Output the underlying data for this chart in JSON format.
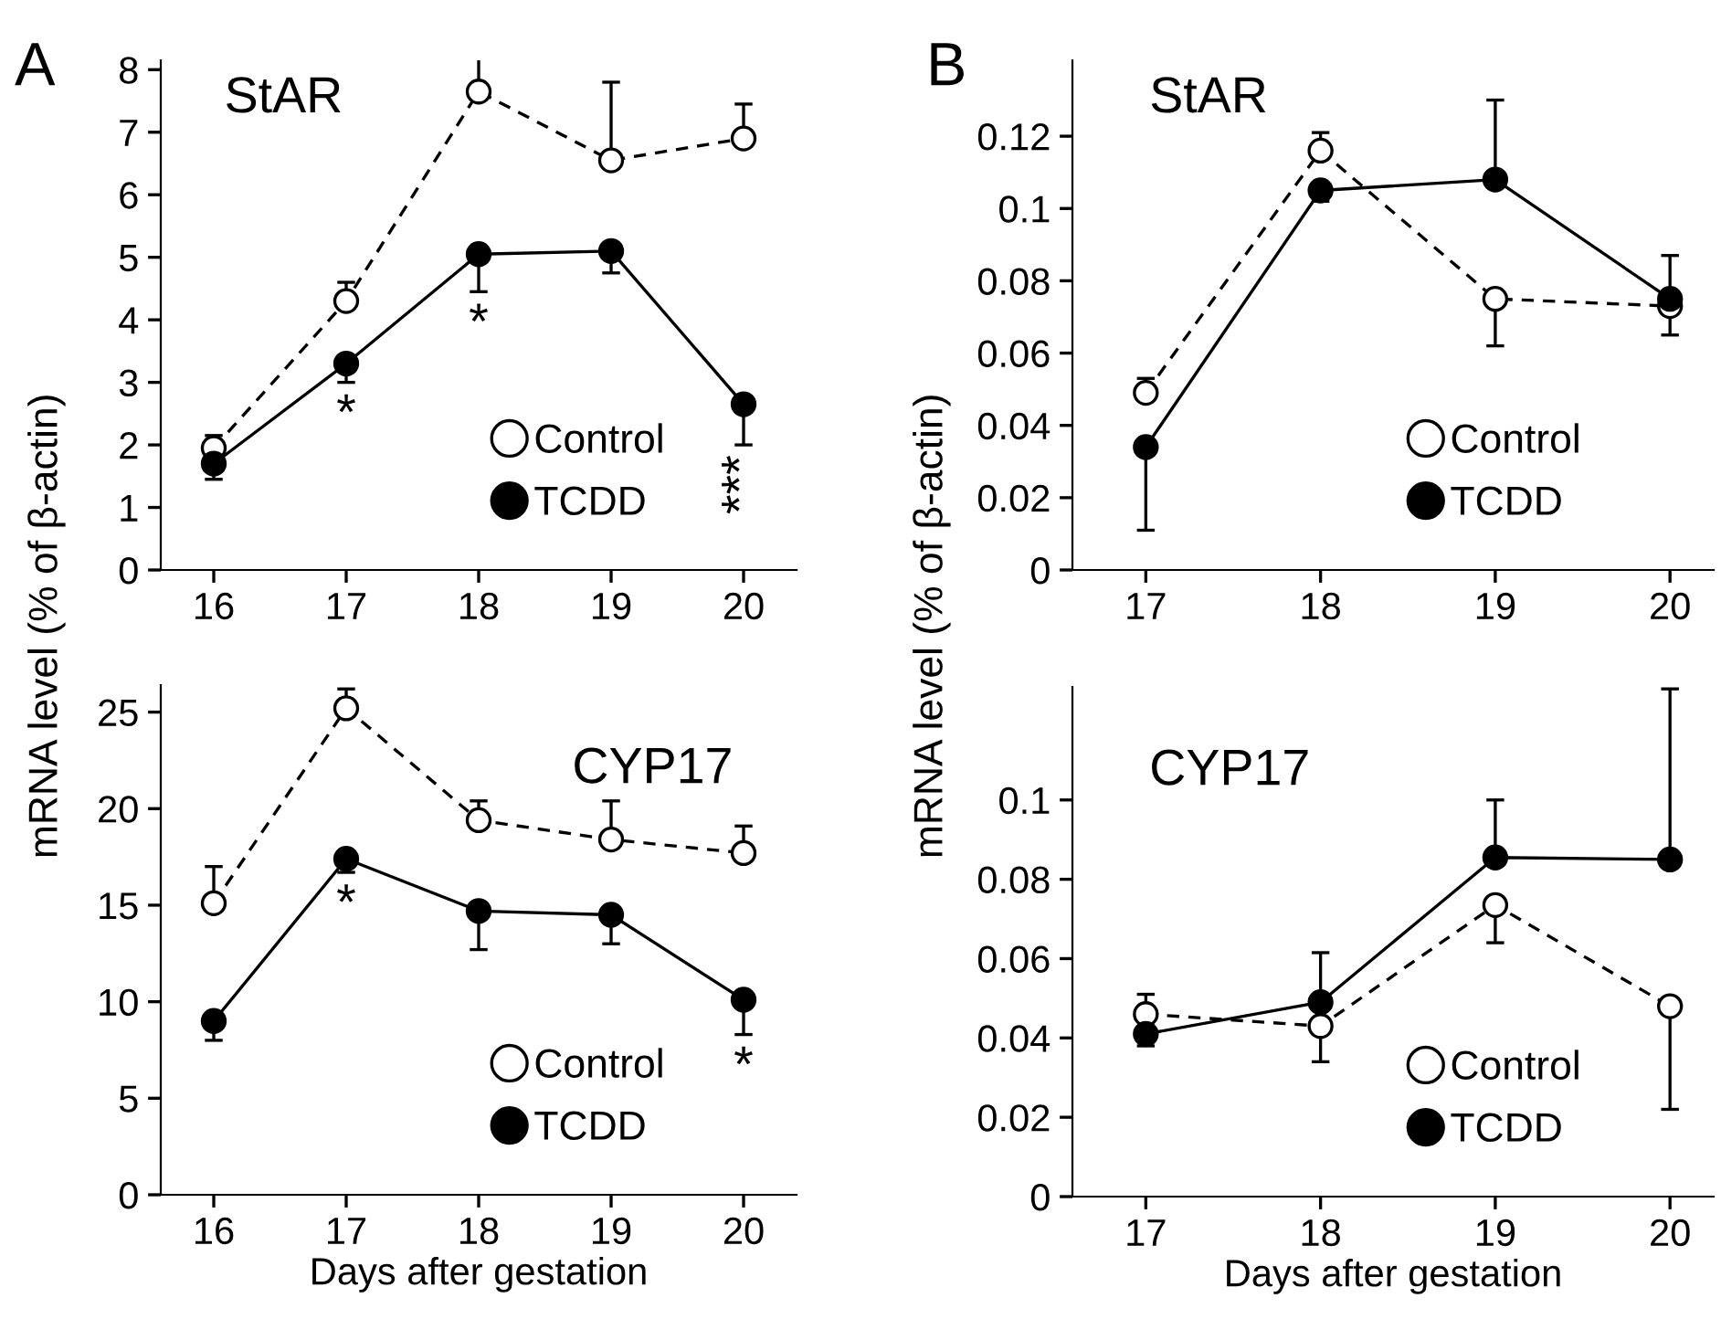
{
  "chart_data": [
    {
      "type": "line",
      "title": "StAR",
      "ylabel": "mRNA level (% of β-actin)",
      "annotations": [
        "A",
        {
          "text": "*",
          "x": 17,
          "y": 3.3
        },
        {
          "text": "*",
          "x": 18,
          "y": 5.05
        },
        {
          "text": "***",
          "x": 20,
          "y": 2.65
        }
      ],
      "x": [
        16,
        17,
        18,
        19,
        20
      ],
      "xlim": [
        15.6,
        20.4
      ],
      "xticks": [
        16,
        17,
        18,
        19,
        20
      ],
      "ylim": [
        0,
        8.15
      ],
      "yticks": [
        0,
        1,
        2,
        3,
        4,
        5,
        6,
        7,
        8
      ],
      "legend": "lower right",
      "grid": false,
      "marker": "circle",
      "series": [
        {
          "name": "Control",
          "color": "#ffffff",
          "line_style": "dashed",
          "values": [
            1.95,
            4.3,
            7.65,
            6.55,
            6.9
          ],
          "errors": [
            [
              1.95,
              2.15
            ],
            [
              4.3,
              4.6
            ],
            [
              7.65,
              8.2
            ],
            [
              6.55,
              7.8
            ],
            [
              6.9,
              7.45
            ]
          ]
        },
        {
          "name": "TCDD",
          "color": "#000000",
          "line_style": "solid",
          "values": [
            1.7,
            3.3,
            5.05,
            5.1,
            2.65
          ],
          "errors": [
            [
              1.45,
              1.7
            ],
            [
              3.0,
              3.3
            ],
            [
              4.45,
              5.05
            ],
            [
              4.75,
              5.1
            ],
            [
              2.0,
              2.65
            ]
          ]
        }
      ]
    },
    {
      "type": "line",
      "title": "CYP17",
      "xlabel": "Days after gestation",
      "annotations": [
        {
          "text": "*",
          "x": 17,
          "y": 17.4
        },
        {
          "text": "*",
          "x": 20,
          "y": 10.1
        }
      ],
      "x": [
        16,
        17,
        18,
        19,
        20
      ],
      "xlim": [
        15.6,
        20.4
      ],
      "xticks": [
        16,
        17,
        18,
        19,
        20
      ],
      "ylim": [
        0,
        26.4
      ],
      "yticks": [
        0,
        5,
        10,
        15,
        20,
        25
      ],
      "legend": "lower right",
      "grid": false,
      "marker": "circle",
      "series": [
        {
          "name": "Control",
          "color": "#ffffff",
          "line_style": "dashed",
          "values": [
            15.1,
            25.2,
            19.4,
            18.4,
            17.7
          ],
          "errors": [
            [
              15.1,
              17.0
            ],
            [
              25.2,
              26.2
            ],
            [
              19.4,
              20.4
            ],
            [
              18.4,
              20.4
            ],
            [
              17.7,
              19.1
            ]
          ]
        },
        {
          "name": "TCDD",
          "color": "#000000",
          "line_style": "solid",
          "values": [
            9.0,
            17.4,
            14.7,
            14.5,
            10.1
          ],
          "errors": [
            [
              8.0,
              9.0
            ],
            [
              16.7,
              17.4
            ],
            [
              12.7,
              14.7
            ],
            [
              13.0,
              14.5
            ],
            [
              8.3,
              10.1
            ]
          ]
        }
      ]
    },
    {
      "type": "line",
      "title": "StAR",
      "ylabel": "mRNA level (% of β-actin)",
      "annotations": [
        "B"
      ],
      "x": [
        17,
        18,
        19,
        20
      ],
      "xlim": [
        16.58,
        20.25
      ],
      "xticks": [
        17,
        18,
        19,
        20
      ],
      "ylim": [
        0,
        0.141
      ],
      "yticks": [
        0,
        0.02,
        0.04,
        0.06,
        0.08,
        0.1,
        0.12
      ],
      "legend": "lower right",
      "grid": false,
      "marker": "circle",
      "series": [
        {
          "name": "Control",
          "color": "#ffffff",
          "line_style": "dashed",
          "values": [
            0.049,
            0.116,
            0.075,
            0.073
          ],
          "errors": [
            [
              0.049,
              0.053
            ],
            [
              0.116,
              0.121
            ],
            [
              0.062,
              0.075
            ],
            [
              0.065,
              0.073
            ]
          ]
        },
        {
          "name": "TCDD",
          "color": "#000000",
          "line_style": "solid",
          "values": [
            0.034,
            0.105,
            0.108,
            0.075
          ],
          "errors": [
            [
              0.011,
              0.034
            ],
            [
              0.102,
              0.105
            ],
            [
              0.108,
              0.13
            ],
            [
              0.075,
              0.087
            ]
          ]
        }
      ]
    },
    {
      "type": "line",
      "title": "CYP17",
      "xlabel": "Days after gestation",
      "x": [
        17,
        18,
        19,
        20
      ],
      "xlim": [
        16.58,
        20.25
      ],
      "xticks": [
        17,
        18,
        19,
        20
      ],
      "ylim": [
        0,
        0.1285
      ],
      "yticks": [
        0,
        0.02,
        0.04,
        0.06,
        0.08,
        0.1
      ],
      "legend": "lower right",
      "grid": false,
      "marker": "circle",
      "series": [
        {
          "name": "Control",
          "color": "#ffffff",
          "line_style": "dashed",
          "values": [
            0.046,
            0.043,
            0.0735,
            0.048
          ],
          "errors": [
            [
              0.046,
              0.051
            ],
            [
              0.034,
              0.043
            ],
            [
              0.064,
              0.0735
            ],
            [
              0.022,
              0.048
            ]
          ]
        },
        {
          "name": "TCDD",
          "color": "#000000",
          "line_style": "solid",
          "values": [
            0.041,
            0.049,
            0.0855,
            0.085
          ],
          "errors": [
            [
              0.038,
              0.041
            ],
            [
              0.049,
              0.0615
            ],
            [
              0.0855,
              0.1
            ],
            [
              0.085,
              0.128
            ]
          ]
        }
      ]
    }
  ]
}
